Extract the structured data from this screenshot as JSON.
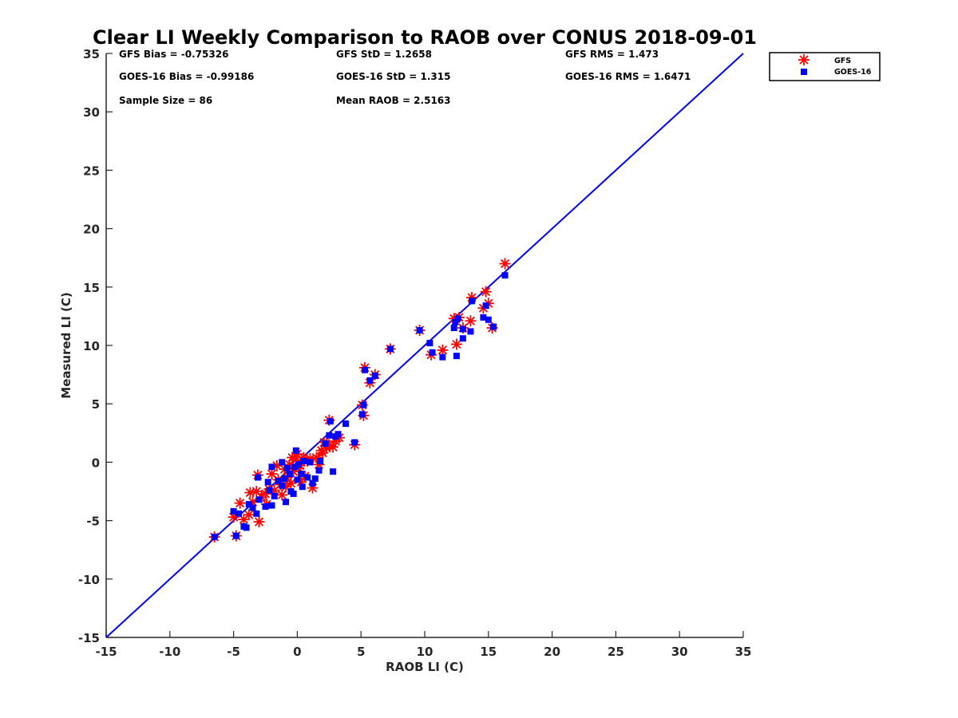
{
  "chart_data": {
    "type": "scatter",
    "title": "Clear LI Weekly Comparison to RAOB over CONUS 2018-09-01",
    "xlabel": "RAOB LI (C)",
    "ylabel": "Measured LI (C)",
    "xlim": [
      -15,
      35
    ],
    "ylim": [
      -15,
      35
    ],
    "xticks": [
      -15,
      -10,
      -5,
      0,
      5,
      10,
      15,
      20,
      25,
      30,
      35
    ],
    "yticks": [
      -15,
      -10,
      -5,
      0,
      5,
      10,
      15,
      20,
      25,
      30,
      35
    ],
    "grid": false,
    "legend_position": "top-right-outside",
    "reference_line": {
      "name": "1:1 line",
      "from": [
        -15,
        -15
      ],
      "to": [
        35,
        35
      ],
      "color": "#0000ff"
    },
    "annotations": [
      "GFS Bias = -0.75326",
      "GFS StD = 1.2658",
      "GFS RMS = 1.473",
      "GOES-16 Bias = -0.99186",
      "GOES-16 StD = 1.315",
      "GOES-16 RMS = 1.6471",
      "Sample Size = 86",
      "Mean RAOB = 2.5163"
    ],
    "series": [
      {
        "name": "GFS",
        "marker": "asterisk",
        "color": "#ff0000",
        "points": [
          [
            -6.5,
            -6.4
          ],
          [
            -4.8,
            -6.3
          ],
          [
            -5.0,
            -4.7
          ],
          [
            -4.5,
            -3.5
          ],
          [
            -4.2,
            -4.9
          ],
          [
            -3.8,
            -4.5
          ],
          [
            -3.7,
            -2.6
          ],
          [
            -3.2,
            -2.5
          ],
          [
            -3.0,
            -5.1
          ],
          [
            -3.1,
            -1.1
          ],
          [
            -2.8,
            -3.0
          ],
          [
            -2.5,
            -2.7
          ],
          [
            -2.2,
            -2.3
          ],
          [
            -2.0,
            -1.0
          ],
          [
            -1.8,
            -2.4
          ],
          [
            -1.5,
            -1.5
          ],
          [
            -1.2,
            -2.8
          ],
          [
            -1.0,
            -0.6
          ],
          [
            -0.8,
            -1.3
          ],
          [
            -0.6,
            -0.2
          ],
          [
            -0.5,
            -1.8
          ],
          [
            -0.3,
            -0.8
          ],
          [
            -0.1,
            0.2
          ],
          [
            0.0,
            0.7
          ],
          [
            0.2,
            -0.3
          ],
          [
            0.3,
            -1.7
          ],
          [
            0.5,
            0.4
          ],
          [
            0.8,
            0.1
          ],
          [
            1.0,
            0.3
          ],
          [
            1.2,
            -2.2
          ],
          [
            1.5,
            0.4
          ],
          [
            1.7,
            -0.2
          ],
          [
            2.0,
            0.8
          ],
          [
            2.3,
            1.2
          ],
          [
            2.5,
            1.5
          ],
          [
            2.8,
            1.3
          ],
          [
            3.0,
            1.8
          ],
          [
            3.3,
            2.1
          ],
          [
            2.5,
            3.6
          ],
          [
            4.5,
            1.5
          ],
          [
            5.1,
            4.9
          ],
          [
            5.2,
            4.0
          ],
          [
            5.3,
            8.1
          ],
          [
            5.7,
            6.8
          ],
          [
            6.1,
            7.5
          ],
          [
            7.3,
            9.7
          ],
          [
            9.6,
            11.3
          ],
          [
            10.5,
            9.2
          ],
          [
            11.4,
            9.6
          ],
          [
            12.3,
            12.3
          ],
          [
            12.5,
            10.1
          ],
          [
            13.0,
            11.5
          ],
          [
            13.6,
            12.1
          ],
          [
            13.7,
            14.1
          ],
          [
            14.6,
            13.2
          ],
          [
            14.8,
            14.6
          ],
          [
            15.0,
            13.6
          ],
          [
            15.3,
            11.5
          ],
          [
            16.3,
            17.0
          ],
          [
            12.7,
            12.4
          ],
          [
            -2.4,
            -3.6
          ],
          [
            -1.3,
            -1.9
          ],
          [
            0.6,
            -1.2
          ],
          [
            -0.9,
            -2.1
          ],
          [
            1.9,
            1.0
          ],
          [
            -3.5,
            -3.4
          ],
          [
            0.1,
            -0.5
          ],
          [
            -0.4,
            0.4
          ],
          [
            2.1,
            1.7
          ],
          [
            -1.6,
            -0.3
          ]
        ]
      },
      {
        "name": "GOES-16",
        "marker": "square",
        "color": "#0000ff",
        "points": [
          [
            -6.5,
            -6.4
          ],
          [
            -4.8,
            -6.3
          ],
          [
            -5.0,
            -4.2
          ],
          [
            -4.6,
            -4.4
          ],
          [
            -4.2,
            -5.5
          ],
          [
            -4.0,
            -5.6
          ],
          [
            -3.8,
            -3.6
          ],
          [
            -3.5,
            -3.9
          ],
          [
            -3.2,
            -4.4
          ],
          [
            -3.1,
            -1.3
          ],
          [
            -3.0,
            -3.2
          ],
          [
            -2.5,
            -3.8
          ],
          [
            -2.3,
            -1.7
          ],
          [
            -2.0,
            -3.7
          ],
          [
            -2.0,
            -0.4
          ],
          [
            -1.8,
            -2.9
          ],
          [
            -1.5,
            -1.6
          ],
          [
            -1.2,
            -2.0
          ],
          [
            -1.2,
            0.0
          ],
          [
            -1.0,
            -1.4
          ],
          [
            -0.9,
            -3.4
          ],
          [
            -0.8,
            -0.5
          ],
          [
            -0.6,
            -1.0
          ],
          [
            -0.5,
            -2.5
          ],
          [
            -0.3,
            -2.7
          ],
          [
            -0.2,
            -0.4
          ],
          [
            -0.1,
            1.0
          ],
          [
            0.0,
            -1.5
          ],
          [
            0.1,
            -0.2
          ],
          [
            0.3,
            -1.0
          ],
          [
            0.5,
            0.1
          ],
          [
            0.8,
            -1.3
          ],
          [
            1.0,
            0.0
          ],
          [
            1.2,
            -1.8
          ],
          [
            1.7,
            -0.7
          ],
          [
            1.8,
            0.1
          ],
          [
            2.2,
            1.6
          ],
          [
            2.5,
            2.3
          ],
          [
            2.6,
            3.5
          ],
          [
            2.8,
            -0.8
          ],
          [
            3.0,
            2.2
          ],
          [
            3.2,
            2.4
          ],
          [
            3.8,
            3.3
          ],
          [
            4.5,
            1.7
          ],
          [
            5.1,
            4.1
          ],
          [
            5.2,
            4.9
          ],
          [
            5.3,
            7.9
          ],
          [
            5.7,
            7.0
          ],
          [
            6.1,
            7.4
          ],
          [
            7.3,
            9.7
          ],
          [
            9.6,
            11.3
          ],
          [
            10.4,
            10.2
          ],
          [
            10.6,
            9.4
          ],
          [
            11.4,
            9.0
          ],
          [
            12.3,
            11.5
          ],
          [
            12.4,
            12.0
          ],
          [
            12.5,
            9.1
          ],
          [
            12.6,
            12.3
          ],
          [
            13.0,
            10.6
          ],
          [
            13.0,
            11.4
          ],
          [
            13.6,
            11.2
          ],
          [
            13.7,
            13.8
          ],
          [
            14.6,
            12.4
          ],
          [
            14.8,
            13.4
          ],
          [
            15.0,
            12.2
          ],
          [
            15.4,
            11.6
          ],
          [
            16.3,
            16.0
          ],
          [
            -2.2,
            -2.4
          ],
          [
            0.4,
            -2.1
          ],
          [
            1.4,
            -1.4
          ]
        ]
      }
    ]
  }
}
